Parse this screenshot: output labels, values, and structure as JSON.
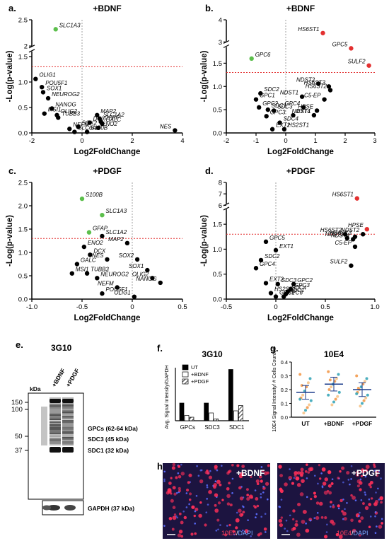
{
  "chart_data": [
    {
      "panel": "a.",
      "type": "scatter",
      "title": "+BDNF",
      "xlabel": "Log2FoldChange",
      "ylabel": "-Log(p-value)",
      "xlim": [
        -2,
        4
      ],
      "xticks": [
        -2,
        0,
        2,
        4
      ],
      "yticks_low": [
        0.0,
        0.5,
        1.0,
        1.5
      ],
      "yticks_high": [
        2.0,
        2.5
      ],
      "axis_break": [
        1.6,
        1.95
      ],
      "threshold": 1.3,
      "points": [
        {
          "label": "SLC1A3",
          "x": -1.05,
          "y": 2.32,
          "color": "green"
        },
        {
          "label": "OLIG1",
          "x": -1.85,
          "y": 1.06,
          "color": "black"
        },
        {
          "label": "POU5F1",
          "x": -1.6,
          "y": 0.9,
          "color": "black"
        },
        {
          "label": "SOX1",
          "x": -1.55,
          "y": 0.8,
          "color": "black"
        },
        {
          "label": "NEUROG2",
          "x": -1.35,
          "y": 0.68,
          "color": "black"
        },
        {
          "label": "NANOG",
          "x": -1.2,
          "y": 0.48,
          "color": "black"
        },
        {
          "label": "MSI1",
          "x": -1.5,
          "y": 0.38,
          "color": "black"
        },
        {
          "label": "OLIG2",
          "x": -1.0,
          "y": 0.35,
          "color": "black"
        },
        {
          "label": "TUBB3",
          "x": -0.95,
          "y": 0.3,
          "color": "black"
        },
        {
          "label": "NEFM",
          "x": -0.5,
          "y": 0.08,
          "color": "black"
        },
        {
          "label": "SLC6A4",
          "x": -0.3,
          "y": 0.02,
          "color": "black"
        },
        {
          "label": "SOX2",
          "x": -0.15,
          "y": 0.12,
          "color": "black"
        },
        {
          "label": "DCX",
          "x": 0.3,
          "y": 0.2,
          "color": "black"
        },
        {
          "label": "MAP2",
          "x": 0.6,
          "y": 0.35,
          "color": "black"
        },
        {
          "label": "SLC1A2",
          "x": 0.7,
          "y": 0.28,
          "color": "black"
        },
        {
          "label": "GFAP",
          "x": 0.75,
          "y": 0.22,
          "color": "black"
        },
        {
          "label": "GALC",
          "x": 0.8,
          "y": 0.18,
          "color": "black"
        },
        {
          "label": "ENO2",
          "x": 0.65,
          "y": 0.1,
          "color": "black"
        },
        {
          "label": "S100B",
          "x": 0.2,
          "y": 0.02,
          "color": "black"
        },
        {
          "label": "NES",
          "x": 3.7,
          "y": 0.05,
          "color": "black"
        }
      ]
    },
    {
      "panel": "b.",
      "type": "scatter",
      "title": "+BDNF",
      "xlabel": "Log2FoldChange",
      "ylabel": "-Log(p-value)",
      "xlim": [
        -2,
        3
      ],
      "xticks": [
        -2,
        -1,
        0,
        1,
        2,
        3
      ],
      "yticks_low": [
        0.0,
        0.5,
        1.0,
        1.5
      ],
      "yticks_high": [
        3,
        4
      ],
      "axis_break": [
        1.85,
        2.9
      ],
      "threshold": 1.3,
      "points": [
        {
          "label": "HS6ST1",
          "x": 1.25,
          "y": 3.4,
          "color": "red"
        },
        {
          "label": "GPC5",
          "x": 2.2,
          "y": 1.82,
          "color": "red"
        },
        {
          "label": "SULF2",
          "x": 2.8,
          "y": 1.45,
          "color": "red"
        },
        {
          "label": "GPC6",
          "x": -1.15,
          "y": 1.6,
          "color": "green"
        },
        {
          "label": "NDST2",
          "x": 1.1,
          "y": 1.06,
          "color": "black"
        },
        {
          "label": "HS6ST3",
          "x": 1.45,
          "y": 1.0,
          "color": "black"
        },
        {
          "label": "HS6ST2",
          "x": 1.5,
          "y": 0.92,
          "color": "black"
        },
        {
          "label": "C5-EP",
          "x": 1.3,
          "y": 0.72,
          "color": "black"
        },
        {
          "label": "NDST1",
          "x": 0.55,
          "y": 0.78,
          "color": "black"
        },
        {
          "label": "HPSE",
          "x": 1.05,
          "y": 0.48,
          "color": "black"
        },
        {
          "label": "NDST4",
          "x": 0.95,
          "y": 0.38,
          "color": "black"
        },
        {
          "label": "GPC4",
          "x": 0.6,
          "y": 0.55,
          "color": "black"
        },
        {
          "label": "EXT1",
          "x": 0.25,
          "y": 0.38,
          "color": "black"
        },
        {
          "label": "HS2ST1",
          "x": -0.05,
          "y": 0.08,
          "color": "black"
        },
        {
          "label": "SDC2",
          "x": -0.85,
          "y": 0.85,
          "color": "black"
        },
        {
          "label": "GPC1",
          "x": -1.0,
          "y": 0.72,
          "color": "black"
        },
        {
          "label": "GPC2",
          "x": -0.9,
          "y": 0.55,
          "color": "black"
        },
        {
          "label": "SDC1",
          "x": -0.6,
          "y": 0.5,
          "color": "black"
        },
        {
          "label": "SDC3",
          "x": -0.4,
          "y": 0.48,
          "color": "black"
        },
        {
          "label": "GPC3",
          "x": -0.65,
          "y": 0.36,
          "color": "black"
        },
        {
          "label": "SDC4",
          "x": -0.2,
          "y": 0.22,
          "color": "black"
        },
        {
          "label": "EXT2",
          "x": -0.45,
          "y": 0.08,
          "color": "black"
        }
      ]
    },
    {
      "panel": "c.",
      "type": "scatter",
      "title": "+PDGF",
      "xlabel": "Log2FoldChange",
      "ylabel": "-Log(p-value)",
      "xlim": [
        -1.0,
        0.5
      ],
      "xticks": [
        -1.0,
        -0.5,
        0.0,
        0.5
      ],
      "yticks": [
        0.0,
        0.5,
        1.0,
        1.5,
        2.0,
        2.5
      ],
      "threshold": 1.3,
      "points": [
        {
          "label": "S100B",
          "x": -0.5,
          "y": 2.15,
          "color": "green"
        },
        {
          "label": "SLC1A3",
          "x": -0.3,
          "y": 1.8,
          "color": "green"
        },
        {
          "label": "GFAP",
          "x": -0.43,
          "y": 1.43,
          "color": "green"
        },
        {
          "label": "SLC1A2",
          "x": -0.3,
          "y": 1.35,
          "color": "black"
        },
        {
          "label": "MAP2",
          "x": -0.05,
          "y": 1.2,
          "color": "black"
        },
        {
          "label": "ENO2",
          "x": -0.48,
          "y": 1.12,
          "color": "black"
        },
        {
          "label": "NES",
          "x": -0.25,
          "y": 0.85,
          "color": "black"
        },
        {
          "label": "DCX",
          "x": -0.42,
          "y": 0.95,
          "color": "black"
        },
        {
          "label": "GALC",
          "x": -0.55,
          "y": 0.75,
          "color": "black"
        },
        {
          "label": "SOX2",
          "x": 0.05,
          "y": 0.85,
          "color": "black"
        },
        {
          "label": "MSI1",
          "x": -0.6,
          "y": 0.55,
          "color": "black"
        },
        {
          "label": "TUBB3",
          "x": -0.45,
          "y": 0.55,
          "color": "black"
        },
        {
          "label": "NEUROG2",
          "x": -0.35,
          "y": 0.45,
          "color": "black"
        },
        {
          "label": "NEFM",
          "x": -0.15,
          "y": 0.25,
          "color": "black"
        },
        {
          "label": "POU5F1",
          "x": -0.3,
          "y": 0.12,
          "color": "black"
        },
        {
          "label": "SOX1",
          "x": 0.15,
          "y": 0.62,
          "color": "black"
        },
        {
          "label": "OLIG2",
          "x": 0.2,
          "y": 0.45,
          "color": "black"
        },
        {
          "label": "NANOG",
          "x": 0.28,
          "y": 0.35,
          "color": "black"
        },
        {
          "label": "OLIG1",
          "x": 0.02,
          "y": 0.05,
          "color": "black"
        }
      ]
    },
    {
      "panel": "d.",
      "type": "scatter",
      "title": "+PDGF",
      "xlabel": "Log2FoldChange",
      "ylabel": "-Log(p-value)",
      "xlim": [
        -0.5,
        1.0
      ],
      "xticks": [
        -0.5,
        0.0,
        0.5,
        1.0
      ],
      "yticks_low": [
        0.0,
        0.5,
        1.0,
        1.5
      ],
      "yticks_high": [
        6,
        7,
        8
      ],
      "axis_break": [
        1.8,
        5.9
      ],
      "threshold": 1.3,
      "points": [
        {
          "label": "HS6ST1",
          "x": 0.82,
          "y": 6.6,
          "color": "red"
        },
        {
          "label": "HPSE",
          "x": 0.92,
          "y": 1.4,
          "color": "red"
        },
        {
          "label": "HS6ST2",
          "x": 0.7,
          "y": 1.3,
          "color": "black"
        },
        {
          "label": "NDST1",
          "x": 0.72,
          "y": 1.22,
          "color": "black"
        },
        {
          "label": "NDST4",
          "x": 0.78,
          "y": 1.2,
          "color": "black"
        },
        {
          "label": "HS6ST3",
          "x": 0.8,
          "y": 1.25,
          "color": "black"
        },
        {
          "label": "NDST2",
          "x": 0.88,
          "y": 1.3,
          "color": "black"
        },
        {
          "label": "C5-EP",
          "x": 0.8,
          "y": 1.05,
          "color": "black"
        },
        {
          "label": "SULF2",
          "x": 0.76,
          "y": 0.67,
          "color": "black"
        },
        {
          "label": "GPC5",
          "x": -0.1,
          "y": 1.15,
          "color": "black"
        },
        {
          "label": "EXT1",
          "x": 0.0,
          "y": 0.98,
          "color": "black"
        },
        {
          "label": "SDC2",
          "x": -0.15,
          "y": 0.78,
          "color": "black"
        },
        {
          "label": "GPC4",
          "x": -0.2,
          "y": 0.62,
          "color": "black"
        },
        {
          "label": "EXT2",
          "x": -0.1,
          "y": 0.32,
          "color": "black"
        },
        {
          "label": "SDC3",
          "x": 0.02,
          "y": 0.3,
          "color": "black"
        },
        {
          "label": "HS2ST1",
          "x": -0.05,
          "y": 0.12,
          "color": "black"
        },
        {
          "label": "GPC1",
          "x": 0.0,
          "y": 0.05,
          "color": "black"
        },
        {
          "label": "GPC2",
          "x": 0.18,
          "y": 0.3,
          "color": "black"
        },
        {
          "label": "GPC3",
          "x": 0.15,
          "y": 0.2,
          "color": "black"
        },
        {
          "label": "SDC4",
          "x": 0.12,
          "y": 0.15,
          "color": "black"
        },
        {
          "label": "SDC1",
          "x": 0.1,
          "y": 0.1,
          "color": "black"
        },
        {
          "label": "GPC6",
          "x": 0.08,
          "y": 0.05,
          "color": "black"
        }
      ]
    },
    {
      "panel": "f.",
      "type": "bar",
      "title": "3G10",
      "ylabel": "Avg. Signal Intensity/GAPDH",
      "categories": [
        "GPCs",
        "SDC3",
        "SDC1"
      ],
      "series": [
        {
          "name": "UT",
          "values": [
            0.5,
            0.5,
            1.45
          ],
          "fill": "#000000"
        },
        {
          "name": "+BDNF",
          "values": [
            0.15,
            0.22,
            0.28
          ],
          "fill": "#ffffff"
        },
        {
          "name": "+PDGF",
          "values": [
            0.1,
            0.05,
            0.43
          ],
          "fill": "hatch"
        }
      ],
      "ylim": [
        0,
        1.5
      ]
    },
    {
      "panel": "g.",
      "type": "scatter",
      "title": "10E4",
      "ylabel": "10E4 Signal Intensity/ # Cells Counted",
      "categories": [
        "UT",
        "+BDNF",
        "+PDGF"
      ],
      "yticks": [
        "0.0",
        "0.1",
        "0.2",
        "0.3",
        "0.4"
      ],
      "ylim": [
        0,
        0.4
      ],
      "means": [
        0.18,
        0.24,
        0.2
      ],
      "points": [
        [
          0.31,
          0.28,
          0.25,
          0.22,
          0.19,
          0.16,
          0.14,
          0.12,
          0.09,
          0.07,
          0.05,
          0.03,
          0.23,
          0.13
        ],
        [
          0.33,
          0.31,
          0.28,
          0.26,
          0.24,
          0.22,
          0.2,
          0.18,
          0.15,
          0.13,
          0.11,
          0.09,
          0.27,
          0.16
        ],
        [
          0.3,
          0.28,
          0.26,
          0.24,
          0.22,
          0.2,
          0.18,
          0.16,
          0.14,
          0.12,
          0.1,
          0.08,
          0.21,
          0.17
        ]
      ]
    }
  ],
  "panel_e": {
    "label": "e.",
    "title": "3G10",
    "kda": "kDa",
    "lanes": [
      "+BDNF",
      "+PDGF"
    ],
    "markers": [
      "150",
      "100",
      "50",
      "37"
    ],
    "bands": [
      "GPCs (62-64 kDa)",
      "SDC3 (45 kDa)",
      "SDC1 (32 kDa)"
    ],
    "gapdh": "GAPDH (37 kDa)"
  },
  "panel_h": {
    "label": "h.",
    "left_title": "+BDNF",
    "right_title": "+PDGF",
    "stain_a": "10E4",
    "sep": "/",
    "stain_b": "DAPI"
  }
}
